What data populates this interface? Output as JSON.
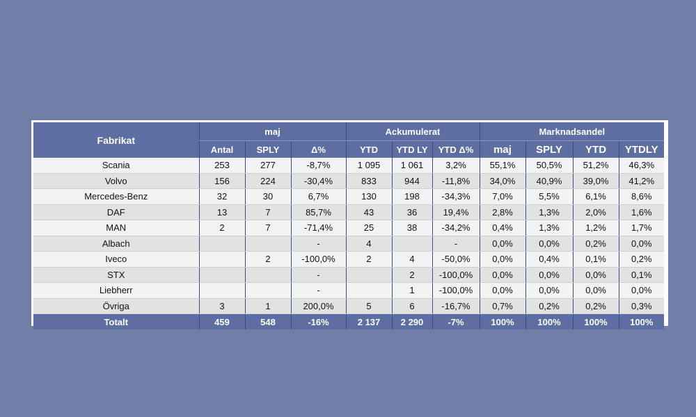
{
  "headers": {
    "fabrikat": "Fabrikat",
    "group_maj": "maj",
    "group_ack": "Ackumulerat",
    "group_mark": "Marknadsandel",
    "cols": [
      "Antal",
      "SPLY",
      "Δ%",
      "YTD",
      "YTD LY",
      "YTD Δ%",
      "maj",
      "SPLY",
      "YTD",
      "YTDLY"
    ]
  },
  "rows": [
    [
      "Scania",
      "253",
      "277",
      "-8,7%",
      "1 095",
      "1 061",
      "3,2%",
      "55,1%",
      "50,5%",
      "51,2%",
      "46,3%"
    ],
    [
      "Volvo",
      "156",
      "224",
      "-30,4%",
      "833",
      "944",
      "-11,8%",
      "34,0%",
      "40,9%",
      "39,0%",
      "41,2%"
    ],
    [
      "Mercedes-Benz",
      "32",
      "30",
      "6,7%",
      "130",
      "198",
      "-34,3%",
      "7,0%",
      "5,5%",
      "6,1%",
      "8,6%"
    ],
    [
      "DAF",
      "13",
      "7",
      "85,7%",
      "43",
      "36",
      "19,4%",
      "2,8%",
      "1,3%",
      "2,0%",
      "1,6%"
    ],
    [
      "MAN",
      "2",
      "7",
      "-71,4%",
      "25",
      "38",
      "-34,2%",
      "0,4%",
      "1,3%",
      "1,2%",
      "1,7%"
    ],
    [
      "Albach",
      "",
      "",
      "-",
      "4",
      "",
      "-",
      "0,0%",
      "0,0%",
      "0,2%",
      "0,0%"
    ],
    [
      "Iveco",
      "",
      "2",
      "-100,0%",
      "2",
      "4",
      "-50,0%",
      "0,0%",
      "0,4%",
      "0,1%",
      "0,2%"
    ],
    [
      "STX",
      "",
      "",
      "-",
      "",
      "2",
      "-100,0%",
      "0,0%",
      "0,0%",
      "0,0%",
      "0,1%"
    ],
    [
      "Liebherr",
      "",
      "",
      "-",
      "",
      "1",
      "-100,0%",
      "0,0%",
      "0,0%",
      "0,0%",
      "0,0%"
    ],
    [
      "Övriga",
      "3",
      "1",
      "200,0%",
      "5",
      "6",
      "-16,7%",
      "0,7%",
      "0,2%",
      "0,2%",
      "0,3%"
    ]
  ],
  "total": [
    "Totalt",
    "459",
    "548",
    "-16%",
    "2 137",
    "2 290",
    "-7%",
    "100%",
    "100%",
    "100%",
    "100%"
  ]
}
